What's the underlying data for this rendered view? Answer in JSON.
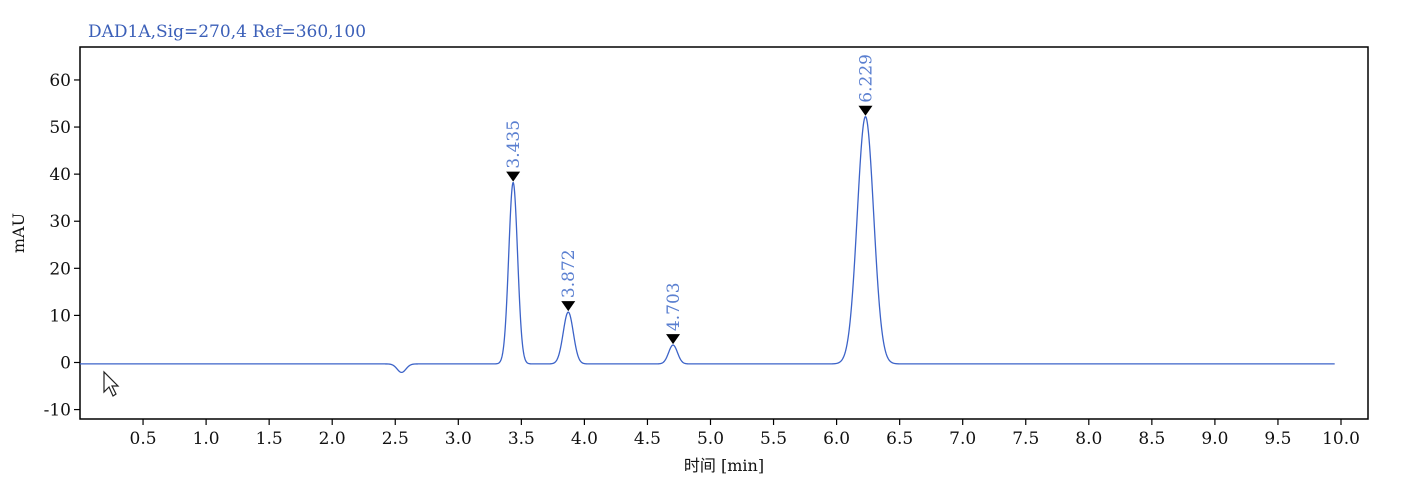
{
  "chart_data": {
    "type": "line",
    "title": "DAD1A,Sig=270,4  Ref=360,100",
    "xlabel": "时间 [min]",
    "ylabel": "mAU",
    "xlim": [
      0,
      10.0
    ],
    "ylim": [
      -12,
      67
    ],
    "x_ticks": [
      0.5,
      1.0,
      1.5,
      2.0,
      2.5,
      3.0,
      3.5,
      4.0,
      4.5,
      5.0,
      5.5,
      6.0,
      6.5,
      7.0,
      7.5,
      8.0,
      8.5,
      9.0,
      9.5,
      10.0
    ],
    "x_tick_labels": [
      "0.5",
      "1.0",
      "1.5",
      "2.0",
      "2.5",
      "3.0",
      "3.5",
      "4.0",
      "4.5",
      "5.0",
      "5.5",
      "6.0",
      "6.5",
      "7.0",
      "7.5",
      "8.0",
      "8.5",
      "9.0",
      "9.5",
      "10.0"
    ],
    "y_ticks": [
      -10,
      0,
      10,
      20,
      30,
      40,
      50,
      60
    ],
    "y_tick_labels": [
      "-10",
      "0",
      "10",
      "20",
      "30",
      "40",
      "50",
      "60"
    ],
    "grid": false,
    "baseline": -0.3,
    "x_range": [
      0.0,
      9.95
    ],
    "dip": {
      "time": 2.55,
      "depth": -1.8,
      "width": 0.035
    },
    "peaks": [
      {
        "label": "3.435",
        "time": 3.435,
        "height": 38.5,
        "width": 0.035
      },
      {
        "label": "3.872",
        "time": 3.872,
        "height": 11.0,
        "width": 0.04
      },
      {
        "label": "4.703",
        "time": 4.703,
        "height": 4.0,
        "width": 0.035
      },
      {
        "label": "6.229",
        "time": 6.229,
        "height": 52.5,
        "width": 0.065
      }
    ],
    "colors": {
      "trace": "#3c63c8",
      "label": "#5a7fd0",
      "title": "#3b5fb8",
      "axis": "#000000"
    }
  }
}
